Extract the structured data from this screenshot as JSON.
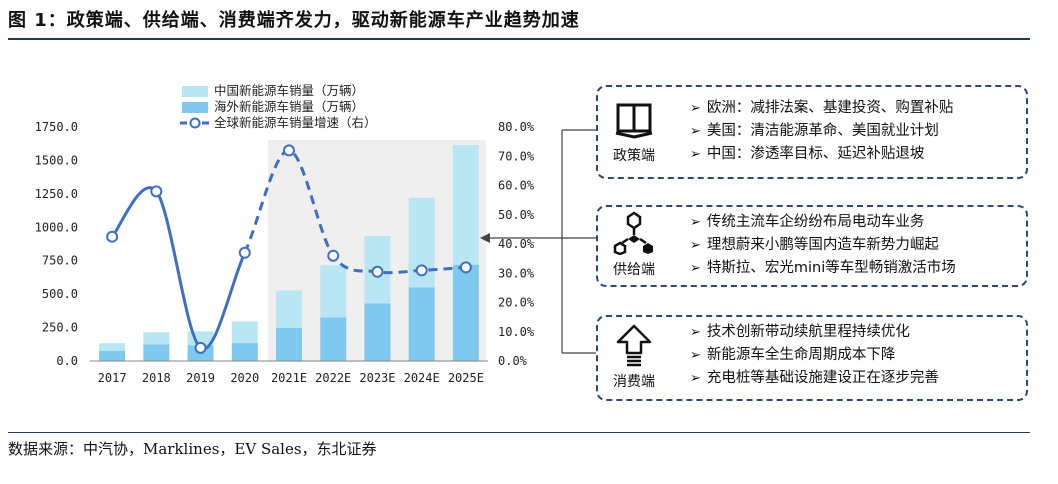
{
  "figure": {
    "title": "图 1：政策端、供给端、消费端齐发力，驱动新能源车产业趋势加速",
    "source": "数据来源：中汽协，Marklines，EV Sales，东北证券"
  },
  "chart_data": {
    "type": "bar",
    "categories": [
      "2017",
      "2018",
      "2019",
      "2020",
      "2021E",
      "2022E",
      "2023E",
      "2024E",
      "2025E"
    ],
    "series": [
      {
        "name": "中国新能源车销量（万辆）",
        "kind": "stacked-bar",
        "color": "#b9e6f2",
        "values": [
          56,
          90,
          106,
          160,
          280,
          390,
          505,
          670,
          895
        ]
      },
      {
        "name": "海外新能源车销量（万辆）",
        "kind": "stacked-bar",
        "color": "#7fc8ee",
        "values": [
          77,
          125,
          116,
          136,
          247,
          326,
          430,
          550,
          720
        ]
      },
      {
        "name": "全球新能源车销量增速（右）",
        "kind": "line",
        "axis": "right",
        "color": "#3f6fc4",
        "values": [
          42.5,
          58.0,
          4.5,
          37.0,
          72.0,
          36.0,
          30.5,
          31.0,
          32.0
        ]
      }
    ],
    "ylim_left": [
      0,
      1750
    ],
    "yticks_left": [
      "1750.0",
      "1500.0",
      "1250.0",
      "1000.0",
      "750.0",
      "500.0",
      "250.0",
      "0.0"
    ],
    "ylim_right": [
      0,
      80
    ],
    "yticks_right": [
      "80.0%",
      "70.0%",
      "60.0%",
      "50.0%",
      "40.0%",
      "30.0%",
      "20.0%",
      "10.0%",
      "0.0%"
    ],
    "forecast_region": [
      "2021E",
      "2025E"
    ],
    "legend_position": "top-left"
  },
  "boxes": [
    {
      "label": "政策端",
      "icon": "book-icon",
      "items": [
        "欧洲：减排法案、基建投资、购置补贴",
        "美国：清洁能源革命、美国就业计划",
        "中国：渗透率目标、延迟补贴退坡"
      ]
    },
    {
      "label": "供给端",
      "icon": "molecule-icon",
      "items": [
        "传统主流车企纷纷布局电动车业务",
        "理想蔚来小鹏等国内造车新势力崛起",
        "特斯拉、宏光mini等车型畅销激活市场"
      ]
    },
    {
      "label": "消费端",
      "icon": "arrow-up-icon",
      "items": [
        "技术创新带动续航里程持续优化",
        "新能源车全生命周期成本下降",
        "充电桩等基础设施建设正在逐步完善"
      ]
    }
  ]
}
